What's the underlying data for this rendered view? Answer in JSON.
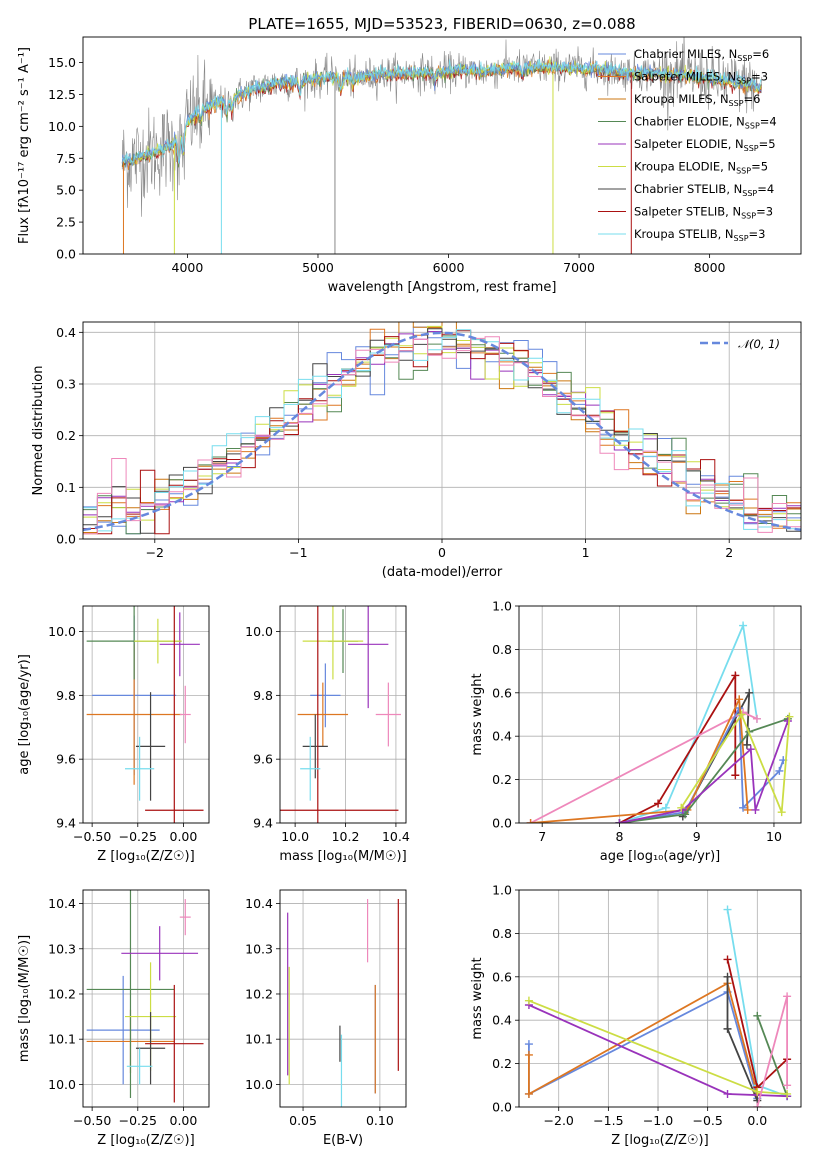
{
  "colors": {
    "Chabrier MILES": "#6688dd",
    "Salpeter MILES": "#dd7722",
    "Kroupa MILES": "#cc7711",
    "Chabrier ELODIE": "#558855",
    "Salpeter ELODIE": "#9933bb",
    "Kroupa ELODIE": "#ccdd44",
    "Chabrier STELIB": "#444444",
    "Salpeter STELIB": "#aa1111",
    "Kroupa STELIB": "#77ddee",
    "pink": "#ee88bb",
    "grey": "#888888",
    "gaussian": "#6688dd"
  },
  "chart_data": [
    {
      "id": "spectrum",
      "type": "line",
      "title": "PLATE=1655, MJD=53523, FIBERID=0630, z=0.088",
      "xlabel": "wavelength [Angstrom, rest frame]",
      "ylabel": "Flux [fλ10⁻¹⁷ erg cm⁻² s⁻¹ A⁻¹]",
      "xlim": [
        3200,
        8700
      ],
      "ylim": [
        0,
        17
      ],
      "xticks": [
        "4000",
        "5000",
        "6000",
        "7000",
        "8000"
      ],
      "yticks": [
        "0.0",
        "2.5",
        "5.0",
        "7.5",
        "10.0",
        "12.5",
        "15.0"
      ],
      "continuum": {
        "x": [
          3500,
          3700,
          3900,
          4000,
          4100,
          4300,
          4500,
          4700,
          4900,
          5100,
          5300,
          5500,
          5700,
          5900,
          6100,
          6300,
          6500,
          6700,
          6900,
          7100,
          7300,
          7500,
          7700,
          7900,
          8100,
          8300,
          8400
        ],
        "y": [
          7.2,
          7.8,
          8.6,
          10.4,
          11.3,
          12.0,
          12.9,
          13.4,
          13.6,
          13.9,
          13.8,
          14.1,
          14.2,
          14.2,
          14.4,
          14.3,
          14.6,
          14.6,
          14.6,
          14.5,
          14.3,
          14.2,
          14.1,
          13.9,
          13.6,
          13.3,
          12.9
        ]
      },
      "legend": [
        {
          "prefix": "Chabrier MILES, N",
          "value": "=6"
        },
        {
          "prefix": "Salpeter MILES, N",
          "value": "=3"
        },
        {
          "prefix": "Kroupa MILES, N",
          "value": "=6"
        },
        {
          "prefix": "Chabrier ELODIE, N",
          "value": "=4"
        },
        {
          "prefix": "Salpeter ELODIE, N",
          "value": "=5"
        },
        {
          "prefix": "Kroupa ELODIE, N",
          "value": "=5"
        },
        {
          "prefix": "Chabrier STELIB, N",
          "value": "=4"
        },
        {
          "prefix": "Salpeter STELIB, N",
          "value": "=3"
        },
        {
          "prefix": "Kroupa STELIB, N",
          "value": "=3"
        }
      ],
      "legend_subscript": "SSP",
      "legend_placement": "right"
    },
    {
      "id": "residuals",
      "type": "line",
      "xlabel": "(data-model)/error",
      "ylabel": "Normed distribution",
      "xlim": [
        -2.5,
        2.5
      ],
      "ylim": [
        0,
        0.42
      ],
      "xticks": [
        "−2",
        "−1",
        "0",
        "1",
        "2"
      ],
      "yticks": [
        "0.0",
        "0.1",
        "0.2",
        "0.3",
        "0.4"
      ],
      "grid": true,
      "legend_label": "𝒩(0, 1)",
      "legend_placement": "top-right",
      "histogram_bins": {
        "start": -2.5,
        "width": 0.1,
        "count": 50
      }
    },
    {
      "id": "age-vs-Z",
      "type": "scatter",
      "xlabel": "Z [log₁₀(Z/Z☉)]",
      "ylabel": "age  [log₁₀(age/yr)]",
      "xlim": [
        -0.55,
        0.14
      ],
      "ylim": [
        9.4,
        10.08
      ],
      "xticks": [
        "−0.50",
        "−0.25",
        "0.00"
      ],
      "yticks": [
        "9.4",
        "9.6",
        "9.8",
        "10.0"
      ],
      "grid": true,
      "points": [
        {
          "x": -0.27,
          "xerr": 0.23,
          "y": 9.8,
          "yerr": 0.25,
          "color": "Chabrier MILES"
        },
        {
          "x": -0.27,
          "xerr": 0.26,
          "y": 9.74,
          "yerr": 0.22,
          "color": "Salpeter MILES"
        },
        {
          "x": -0.27,
          "xerr": 0.26,
          "y": 9.97,
          "yerr": 0.12,
          "color": "Chabrier ELODIE"
        },
        {
          "x": -0.02,
          "xerr": 0.11,
          "y": 9.96,
          "yerr": 0.1,
          "color": "Salpeter ELODIE"
        },
        {
          "x": -0.14,
          "xerr": 0.13,
          "y": 9.97,
          "yerr": 0.07,
          "color": "Kroupa ELODIE"
        },
        {
          "x": -0.18,
          "xerr": 0.08,
          "y": 9.64,
          "yerr": 0.17,
          "color": "Chabrier STELIB"
        },
        {
          "x": -0.05,
          "xerr": 0.16,
          "y": 9.44,
          "yerr": 0.64,
          "color": "Salpeter STELIB"
        },
        {
          "x": -0.24,
          "xerr": 0.08,
          "y": 9.57,
          "yerr": 0.1,
          "color": "Kroupa STELIB"
        },
        {
          "x": 0.01,
          "xerr": 0.03,
          "y": 9.74,
          "yerr": 0.09,
          "color": "pink"
        }
      ]
    },
    {
      "id": "age-vs-mass",
      "type": "scatter",
      "xlabel": "mass [log₁₀(M/M☉)]",
      "xlim": [
        9.94,
        10.44
      ],
      "ylim": [
        9.4,
        10.08
      ],
      "xticks": [
        "10.0",
        "10.2",
        "10.4"
      ],
      "yticks": [
        "9.4",
        "9.6",
        "9.8",
        "10.0"
      ],
      "grid": true,
      "points": [
        {
          "x": 10.12,
          "xerr": 0.06,
          "y": 9.8,
          "yerr": 0.1,
          "color": "Chabrier MILES"
        },
        {
          "x": 10.11,
          "xerr": 0.1,
          "y": 9.74,
          "yerr": 0.1,
          "color": "Salpeter MILES"
        },
        {
          "x": 10.19,
          "xerr": 0.06,
          "y": 9.97,
          "yerr": 0.1,
          "color": "Chabrier ELODIE"
        },
        {
          "x": 10.29,
          "xerr": 0.08,
          "y": 9.96,
          "yerr": 0.2,
          "color": "Salpeter ELODIE"
        },
        {
          "x": 10.15,
          "xerr": 0.12,
          "y": 9.97,
          "yerr": 0.12,
          "color": "Kroupa ELODIE"
        },
        {
          "x": 10.08,
          "xerr": 0.05,
          "y": 9.64,
          "yerr": 0.1,
          "color": "Chabrier STELIB"
        },
        {
          "x": 10.09,
          "xerr": 0.32,
          "y": 9.44,
          "yerr": 0.64,
          "color": "Salpeter STELIB"
        },
        {
          "x": 10.06,
          "xerr": 0.04,
          "y": 9.57,
          "yerr": 0.1,
          "color": "Kroupa STELIB"
        },
        {
          "x": 10.37,
          "xerr": 0.05,
          "y": 9.74,
          "yerr": 0.1,
          "color": "pink"
        }
      ]
    },
    {
      "id": "weight-vs-age",
      "type": "line",
      "xlabel": "age  [log₁₀(age/yr)]",
      "ylabel": "mass weight",
      "xlim": [
        6.7,
        10.35
      ],
      "ylim": [
        0,
        1
      ],
      "xticks": [
        "7",
        "8",
        "9",
        "10"
      ],
      "yticks": [
        "0.0",
        "0.2",
        "0.4",
        "0.6",
        "0.8",
        "1.0"
      ],
      "grid": true,
      "series": [
        {
          "color": "Kroupa STELIB",
          "x": [
            8.0,
            8.6,
            9.6,
            9.78
          ],
          "y": [
            0.0,
            0.07,
            0.91,
            0.48
          ]
        },
        {
          "color": "Salpeter STELIB",
          "x": [
            8.0,
            8.5,
            9.5,
            9.5
          ],
          "y": [
            0.0,
            0.09,
            0.68,
            0.22
          ]
        },
        {
          "color": "Chabrier STELIB",
          "x": [
            8.82,
            9.68,
            9.65
          ],
          "y": [
            0.03,
            0.6,
            0.36
          ]
        },
        {
          "color": "pink",
          "x": [
            6.85,
            9.6,
            9.78
          ],
          "y": [
            0.0,
            0.51,
            0.48
          ]
        },
        {
          "color": "Chabrier MILES",
          "x": [
            8.0,
            8.85,
            9.55,
            9.6,
            10.07,
            10.12
          ],
          "y": [
            0.0,
            0.05,
            0.53,
            0.07,
            0.24,
            0.29
          ]
        },
        {
          "color": "Salpeter MILES",
          "x": [
            6.85,
            8.88,
            9.55,
            9.66
          ],
          "y": [
            0.0,
            0.06,
            0.57,
            0.06
          ]
        },
        {
          "color": "Chabrier ELODIE",
          "x": [
            8.0,
            8.85,
            9.68,
            10.18
          ],
          "y": [
            0.0,
            0.04,
            0.42,
            0.48
          ]
        },
        {
          "color": "Salpeter ELODIE",
          "x": [
            8.0,
            8.82,
            9.7,
            9.76,
            10.18
          ],
          "y": [
            0.0,
            0.06,
            0.34,
            0.06,
            0.47
          ]
        },
        {
          "color": "Kroupa ELODIE",
          "x": [
            8.8,
            9.58,
            10.1,
            10.2
          ],
          "y": [
            0.07,
            0.5,
            0.05,
            0.49
          ]
        }
      ]
    },
    {
      "id": "mass-vs-Z",
      "type": "scatter",
      "xlabel": "Z [log₁₀(Z/Z☉)]",
      "ylabel": "mass [log₁₀(M/M☉)]",
      "xlim": [
        -0.55,
        0.14
      ],
      "ylim": [
        9.95,
        10.43
      ],
      "xticks": [
        "−0.50",
        "−0.25",
        "0.00"
      ],
      "yticks": [
        "10.0",
        "10.1",
        "10.2",
        "10.3",
        "10.4"
      ],
      "grid": true,
      "points": [
        {
          "x": -0.33,
          "xerr": 0.2,
          "y": 10.12,
          "yerr": 0.12,
          "color": "Chabrier MILES"
        },
        {
          "x": -0.29,
          "xerr": 0.24,
          "y": 10.095,
          "yerr": 0.07,
          "color": "Salpeter MILES"
        },
        {
          "x": -0.29,
          "xerr": 0.24,
          "y": 10.21,
          "yerr": 0.24,
          "color": "Chabrier ELODIE"
        },
        {
          "x": -0.13,
          "xerr": 0.21,
          "y": 10.29,
          "yerr": 0.06,
          "color": "Salpeter ELODIE"
        },
        {
          "x": -0.18,
          "xerr": 0.14,
          "y": 10.15,
          "yerr": 0.12,
          "color": "Kroupa ELODIE"
        },
        {
          "x": -0.18,
          "xerr": 0.08,
          "y": 10.08,
          "yerr": 0.08,
          "color": "Chabrier STELIB"
        },
        {
          "x": -0.05,
          "xerr": 0.16,
          "y": 10.09,
          "yerr": 0.13,
          "color": "Salpeter STELIB"
        },
        {
          "x": -0.24,
          "xerr": 0.07,
          "y": 10.04,
          "yerr": 0.04,
          "color": "Kroupa STELIB"
        },
        {
          "x": 0.01,
          "xerr": 0.03,
          "y": 10.37,
          "yerr": 0.04,
          "color": "pink"
        }
      ]
    },
    {
      "id": "mass-vs-EBV",
      "type": "scatter",
      "xlabel": "E(B-V)",
      "xlim": [
        0.035,
        0.117
      ],
      "ylim": [
        9.95,
        10.43
      ],
      "xticks": [
        "0.05",
        "0.10"
      ],
      "yticks": [
        "10.0",
        "10.1",
        "10.2",
        "10.3",
        "10.4"
      ],
      "grid": true,
      "points": [
        {
          "x": 0.04,
          "y": 10.2,
          "yerr": 0.18,
          "color": "Salpeter ELODIE"
        },
        {
          "x": 0.041,
          "y": 10.13,
          "yerr": 0.13,
          "color": "Kroupa ELODIE"
        },
        {
          "x": 0.074,
          "y": 10.09,
          "yerr": 0.04,
          "color": "Chabrier STELIB"
        },
        {
          "x": 0.075,
          "y": 10.03,
          "yerr": 0.08,
          "color": "Kroupa STELIB"
        },
        {
          "x": 0.092,
          "y": 10.34,
          "yerr": 0.07,
          "color": "pink"
        },
        {
          "x": 0.097,
          "y": 10.1,
          "yerr": 0.12,
          "color": "Chabrier MILES"
        },
        {
          "x": 0.097,
          "y": 10.1,
          "yerr": 0.12,
          "color": "Salpeter MILES"
        },
        {
          "x": 0.112,
          "y": 10.22,
          "yerr": 0.19,
          "color": "Salpeter STELIB"
        }
      ]
    },
    {
      "id": "weight-vs-Z",
      "type": "line",
      "xlabel": "Z [log₁₀(Z/Z☉)]",
      "ylabel": "mass weight",
      "xlim": [
        -2.4,
        0.44
      ],
      "ylim": [
        0,
        1
      ],
      "xticks": [
        "−2.0",
        "−1.5",
        "−1.0",
        "−0.5",
        "0.0"
      ],
      "yticks": [
        "0.0",
        "0.2",
        "0.4",
        "0.6",
        "0.8",
        "1.0"
      ],
      "grid": true,
      "series": [
        {
          "color": "Chabrier MILES",
          "x": [
            -2.3,
            -2.3,
            -0.3,
            0.0
          ],
          "y": [
            0.29,
            0.06,
            0.53,
            0.04
          ]
        },
        {
          "color": "Salpeter MILES",
          "x": [
            -2.3,
            -2.3,
            -0.3,
            0.0
          ],
          "y": [
            0.24,
            0.06,
            0.57,
            0.06
          ]
        },
        {
          "color": "Kroupa STELIB",
          "x": [
            -0.3,
            0.0,
            0.3
          ],
          "y": [
            0.91,
            0.1,
            0.05
          ]
        },
        {
          "color": "Salpeter STELIB",
          "x": [
            -0.3,
            0.0,
            0.3
          ],
          "y": [
            0.68,
            0.09,
            0.22
          ]
        },
        {
          "color": "Chabrier STELIB",
          "x": [
            -0.3,
            -0.3,
            0.0
          ],
          "y": [
            0.6,
            0.36,
            0.03
          ]
        },
        {
          "color": "Chabrier ELODIE",
          "x": [
            0.0,
            0.3
          ],
          "y": [
            0.42,
            0.05
          ]
        },
        {
          "color": "Salpeter ELODIE",
          "x": [
            -2.3,
            -0.3,
            0.3
          ],
          "y": [
            0.47,
            0.06,
            0.05
          ]
        },
        {
          "color": "Kroupa ELODIE",
          "x": [
            -2.3,
            0.0,
            0.3
          ],
          "y": [
            0.49,
            0.07,
            0.06
          ]
        },
        {
          "color": "pink",
          "x": [
            0.0,
            0.3,
            0.3
          ],
          "y": [
            0.0,
            0.51,
            0.1
          ]
        }
      ]
    }
  ]
}
